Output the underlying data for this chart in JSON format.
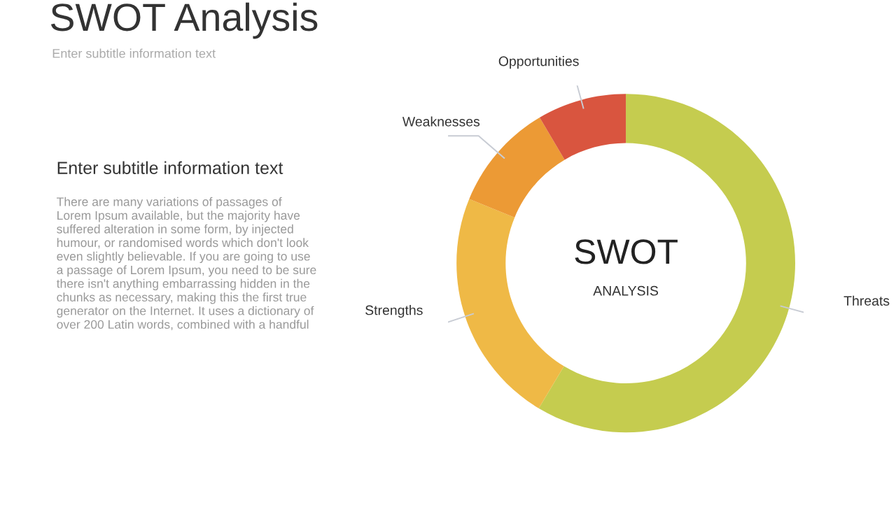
{
  "chart_data": {
    "type": "donut",
    "title": "SWOT Analysis",
    "subtitle": "Enter subtitle information text",
    "categories": [
      "Threats",
      "Strengths",
      "Weaknesses",
      "Opportunities"
    ],
    "values": [
      58.6,
      22.6,
      10.3,
      8.5
    ],
    "colors": [
      "#c5cc4f",
      "#efb946",
      "#ec9a35",
      "#d9553f"
    ],
    "annotations": [
      "Enter subtitle information text",
      "There are many variations of passages of\nLorem Ipsum available, but the majority have\nsuffered alteration in some form, by injected\nhumour, or randomised words which don't look\neven slightly believable. If you are going to use\na passage of Lorem Ipsum, you need to be sure\nthere isn't anything embarrassing hidden in the\nchunks as necessary, making this the first true\ngenerator on the Internet. It uses a dictionary of\nover 200 Latin words, combined with a handful",
      "SWOT",
      "ANALYSIS"
    ],
    "legend": false
  }
}
